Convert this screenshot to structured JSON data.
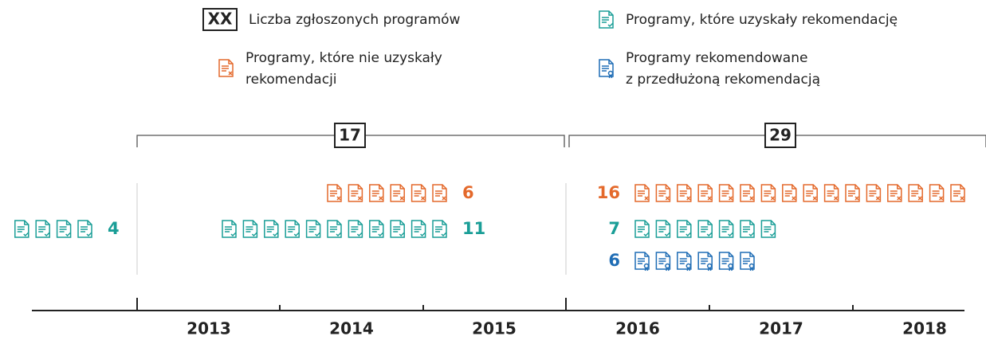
{
  "legend": {
    "total": {
      "sample": "XX",
      "label": "Liczba zgłoszonych programów"
    },
    "recommended": {
      "lines": [
        "Programy, które uzyskały rekomendację"
      ],
      "color": "#1a9e97"
    },
    "not_recommended": {
      "lines": [
        "Programy, które nie uzyskały",
        "rekomendacji"
      ],
      "color": "#e4692b"
    },
    "extended": {
      "lines": [
        "Programy rekomendowane",
        "z przedłużoną rekomendacją"
      ],
      "color": "#1f6db5"
    }
  },
  "periods": [
    {
      "rows": [
        {
          "kind": "recommended",
          "count": 4
        }
      ]
    },
    {
      "total": 17,
      "rows": [
        {
          "kind": "not_recommended",
          "count": 6
        },
        {
          "kind": "recommended",
          "count": 11
        }
      ]
    },
    {
      "total": 29,
      "rows": [
        {
          "kind": "not_recommended",
          "count": 16
        },
        {
          "kind": "recommended",
          "count": 7
        },
        {
          "kind": "extended",
          "count": 6
        }
      ]
    }
  ],
  "years": [
    "2013",
    "2014",
    "2015",
    "2016",
    "2017",
    "2018"
  ]
}
